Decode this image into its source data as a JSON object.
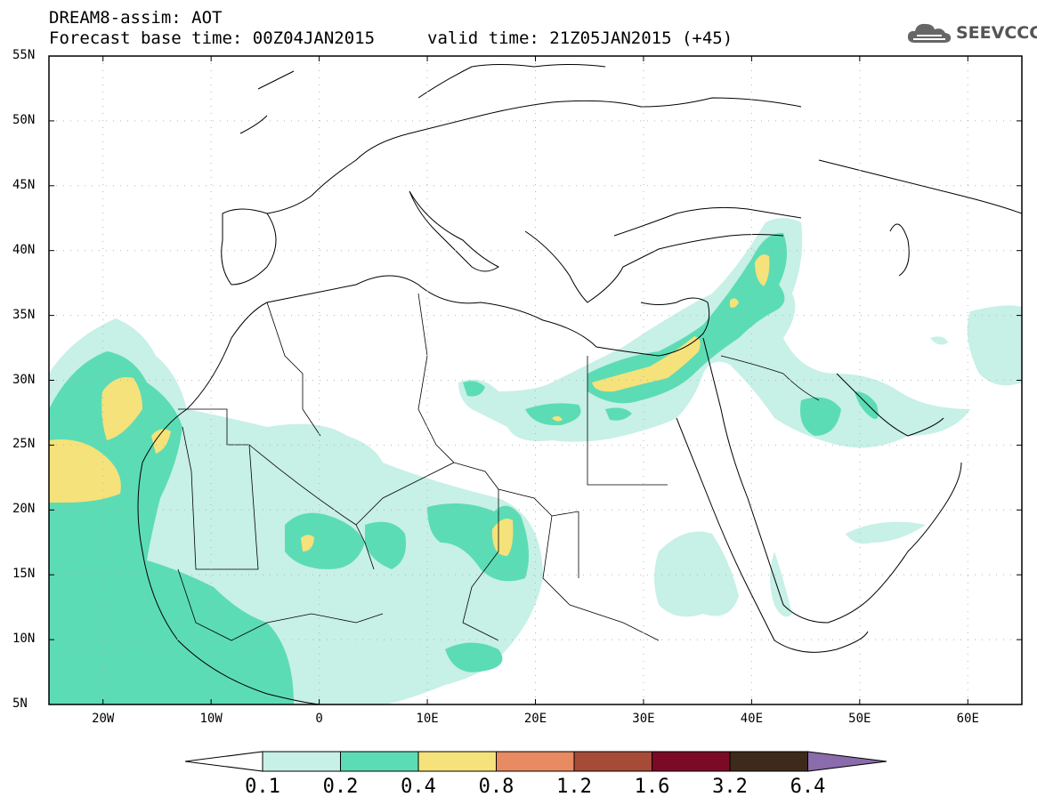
{
  "header": {
    "title": "DREAM8-assim: AOT",
    "base_time": "Forecast base time: 00Z04JAN2015",
    "valid_time": "valid time: 21Z05JAN2015 (+45)",
    "logo_text": "SEEVCCC"
  },
  "map": {
    "lat_labels": [
      "55N",
      "50N",
      "45N",
      "40N",
      "35N",
      "30N",
      "25N",
      "20N",
      "15N",
      "10N",
      "5N"
    ],
    "lon_labels": [
      "20W",
      "10W",
      "0",
      "10E",
      "20E",
      "30E",
      "40E",
      "50E",
      "60E"
    ],
    "lat_range": [
      5,
      55
    ],
    "lon_range": [
      -25,
      65
    ]
  },
  "colorbar": {
    "labels": [
      "0.1",
      "0.2",
      "0.4",
      "0.8",
      "1.2",
      "1.6",
      "3.2",
      "6.4"
    ],
    "colors": [
      "#ffffff",
      "#c7f0e6",
      "#5cdcb4",
      "#f6e27a",
      "#e88a62",
      "#a64b38",
      "#7a0a25",
      "#3e2a1a",
      "#8a6bab"
    ]
  }
}
